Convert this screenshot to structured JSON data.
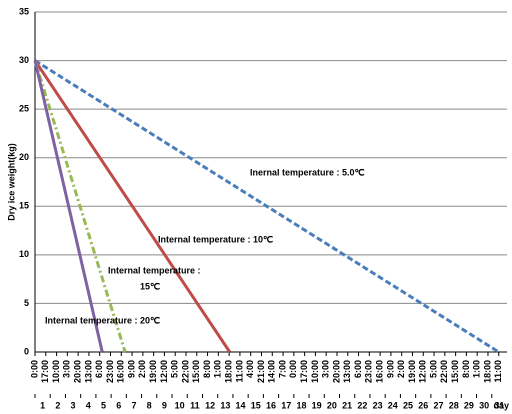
{
  "chart_data": {
    "type": "line",
    "ylabel": "Dry ice weight(kg)",
    "xlabel": "day",
    "ylim": [
      0,
      35
    ],
    "yticks": [
      0,
      5,
      10,
      15,
      20,
      25,
      30,
      35
    ],
    "grid": true,
    "xlim": [
      0,
      744
    ],
    "xticks": [
      {
        "value": 0,
        "label": "0:00"
      },
      {
        "value": 17,
        "label": "17:00"
      },
      {
        "value": 34,
        "label": "10:00"
      },
      {
        "value": 51,
        "label": "3:00"
      },
      {
        "value": 68,
        "label": "20:00"
      },
      {
        "value": 85,
        "label": "13:00"
      },
      {
        "value": 102,
        "label": "6:00"
      },
      {
        "value": 119,
        "label": "23:00"
      },
      {
        "value": 136,
        "label": "16:00"
      },
      {
        "value": 153,
        "label": "9:00"
      },
      {
        "value": 170,
        "label": "2:00"
      },
      {
        "value": 187,
        "label": "19:00"
      },
      {
        "value": 204,
        "label": "12:00"
      },
      {
        "value": 221,
        "label": "5:00"
      },
      {
        "value": 238,
        "label": "22:00"
      },
      {
        "value": 255,
        "label": "15:00"
      },
      {
        "value": 272,
        "label": "8:00"
      },
      {
        "value": 289,
        "label": "1:00"
      },
      {
        "value": 306,
        "label": "18:00"
      },
      {
        "value": 323,
        "label": "11:00"
      },
      {
        "value": 340,
        "label": "4:00"
      },
      {
        "value": 357,
        "label": "21:00"
      },
      {
        "value": 374,
        "label": "14:00"
      },
      {
        "value": 391,
        "label": "7:00"
      },
      {
        "value": 408,
        "label": "0:00"
      },
      {
        "value": 425,
        "label": "17:00"
      },
      {
        "value": 442,
        "label": "10:00"
      },
      {
        "value": 459,
        "label": "3:00"
      },
      {
        "value": 476,
        "label": "20:00"
      },
      {
        "value": 493,
        "label": "13:00"
      },
      {
        "value": 510,
        "label": "6:00"
      },
      {
        "value": 527,
        "label": "23:00"
      },
      {
        "value": 544,
        "label": "16:00"
      },
      {
        "value": 561,
        "label": "9:00"
      },
      {
        "value": 578,
        "label": "2:00"
      },
      {
        "value": 595,
        "label": "19:00"
      },
      {
        "value": 612,
        "label": "12:00"
      },
      {
        "value": 629,
        "label": "5:00"
      },
      {
        "value": 646,
        "label": "22:00"
      },
      {
        "value": 663,
        "label": "15:00"
      },
      {
        "value": 680,
        "label": "8:00"
      },
      {
        "value": 697,
        "label": "1:00"
      },
      {
        "value": 714,
        "label": "18:00"
      },
      {
        "value": 731,
        "label": "11:00"
      }
    ],
    "day_ticks": [
      {
        "value": 12,
        "label": "1"
      },
      {
        "value": 36,
        "label": "2"
      },
      {
        "value": 60,
        "label": "3"
      },
      {
        "value": 84,
        "label": "4"
      },
      {
        "value": 108,
        "label": "5"
      },
      {
        "value": 132,
        "label": "6"
      },
      {
        "value": 156,
        "label": "7"
      },
      {
        "value": 180,
        "label": "8"
      },
      {
        "value": 204,
        "label": "9"
      },
      {
        "value": 228,
        "label": "10"
      },
      {
        "value": 252,
        "label": "11"
      },
      {
        "value": 276,
        "label": "12"
      },
      {
        "value": 300,
        "label": "13"
      },
      {
        "value": 324,
        "label": "14"
      },
      {
        "value": 348,
        "label": "15"
      },
      {
        "value": 372,
        "label": "16"
      },
      {
        "value": 396,
        "label": "17"
      },
      {
        "value": 420,
        "label": "18"
      },
      {
        "value": 444,
        "label": "19"
      },
      {
        "value": 468,
        "label": "20"
      },
      {
        "value": 492,
        "label": "21"
      },
      {
        "value": 516,
        "label": "22"
      },
      {
        "value": 540,
        "label": "23"
      },
      {
        "value": 564,
        "label": "24"
      },
      {
        "value": 588,
        "label": "25"
      },
      {
        "value": 612,
        "label": "26"
      },
      {
        "value": 636,
        "label": "27"
      },
      {
        "value": 660,
        "label": "28"
      },
      {
        "value": 684,
        "label": "29"
      },
      {
        "value": 708,
        "label": "30"
      },
      {
        "value": 732,
        "label": "31"
      }
    ],
    "series": [
      {
        "color": "#4a7ebb",
        "dash": "dashed",
        "x": [
          0,
          731
        ],
        "values": [
          30,
          0
        ]
      },
      {
        "color": "#be4b48",
        "dash": "solid",
        "x": [
          0,
          307
        ],
        "values": [
          30,
          0
        ]
      },
      {
        "color": "#98b954",
        "dash": "dashdot",
        "x": [
          0,
          142
        ],
        "values": [
          30,
          0
        ]
      },
      {
        "color": "#7e62a1",
        "dash": "solid",
        "x": [
          0,
          106
        ],
        "values": [
          30,
          0
        ]
      }
    ],
    "annotations": [
      {
        "lines": [
          "Inernal temperature : 5.0℃"
        ]
      },
      {
        "lines": [
          "Internal temperature : 10℃"
        ]
      },
      {
        "lines": [
          "Internal temperature :",
          "15℃"
        ]
      },
      {
        "lines": [
          "Internal temperature : 20℃"
        ]
      }
    ]
  }
}
